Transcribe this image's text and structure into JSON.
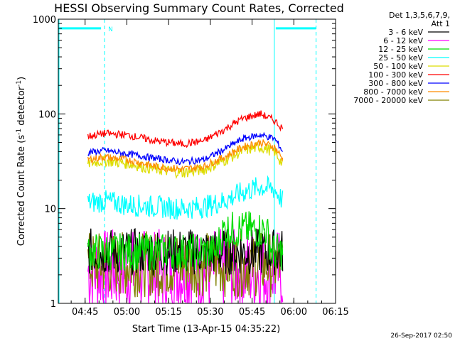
{
  "chart_data": {
    "type": "line",
    "title": "HESSI Observing Summary Count Rates, Corrected",
    "xlabel": "Start Time (13-Apr-15 04:35:22)",
    "ylabel_main": "Corrected Count Rate (s",
    "ylabel_sup1": "-1",
    "ylabel_mid": " detector",
    "ylabel_sup2": "-1",
    "ylabel_end": ")",
    "y_scale": "log",
    "ylim": [
      1,
      1000
    ],
    "xlim": [
      "04:35:22",
      "06:15:00"
    ],
    "x_ticks": [
      "04:45",
      "05:00",
      "05:15",
      "05:30",
      "05:45",
      "06:00",
      "06:15"
    ],
    "y_ticks": [
      "1",
      "10",
      "100",
      "1000"
    ],
    "legend_header": [
      "Det 1,3,5,6,7,9,",
      "Att 1"
    ],
    "legend_placement": "top-right, outside plot",
    "series": [
      {
        "name": "3 - 6 keV",
        "color": "#000000"
      },
      {
        "name": "6 - 12 keV",
        "color": "#ff00ff"
      },
      {
        "name": "12 - 25 keV",
        "color": "#00dd00"
      },
      {
        "name": "25 - 50 keV",
        "color": "#00ffff"
      },
      {
        "name": "50 - 100 keV",
        "color": "#dddd00"
      },
      {
        "name": "100 - 300 keV",
        "color": "#ff0000"
      },
      {
        "name": "300 - 800 keV",
        "color": "#0000ff"
      },
      {
        "name": "800 - 7000 keV",
        "color": "#ff8c00"
      },
      {
        "name": "7000 - 20000 keV",
        "color": "#808000"
      }
    ],
    "profiles": {
      "100 - 300 keV": {
        "x": [
          "04:46",
          "04:52",
          "05:00",
          "05:10",
          "05:20",
          "05:28",
          "05:35",
          "05:42",
          "05:48",
          "05:53",
          "05:56"
        ],
        "y": [
          58,
          62,
          60,
          52,
          48,
          52,
          68,
          90,
          100,
          85,
          70
        ]
      },
      "300 - 800 keV": {
        "x": [
          "04:46",
          "04:52",
          "05:00",
          "05:10",
          "05:20",
          "05:28",
          "05:35",
          "05:42",
          "05:48",
          "05:53",
          "05:56"
        ],
        "y": [
          39,
          41,
          38,
          34,
          31,
          33,
          42,
          55,
          60,
          55,
          40
        ]
      },
      "800 - 7000 keV": {
        "x": [
          "04:46",
          "04:52",
          "05:00",
          "05:10",
          "05:20",
          "05:28",
          "05:35",
          "05:42",
          "05:48",
          "05:53",
          "05:56"
        ],
        "y": [
          33,
          35,
          33,
          28,
          26,
          28,
          35,
          45,
          50,
          45,
          33
        ]
      },
      "50 - 100 keV": {
        "x": [
          "04:46",
          "04:52",
          "05:00",
          "05:10",
          "05:20",
          "05:28",
          "05:35",
          "05:42",
          "05:48",
          "05:53",
          "05:56"
        ],
        "y": [
          30,
          32,
          30,
          26,
          24,
          26,
          32,
          41,
          45,
          40,
          29
        ]
      },
      "25 - 50 keV": {
        "x": [
          "04:46",
          "04:52",
          "05:00",
          "05:10",
          "05:20",
          "05:28",
          "05:35",
          "05:42",
          "05:48",
          "05:53",
          "05:56"
        ],
        "y": [
          11.5,
          12,
          11,
          10.5,
          10,
          10.5,
          12,
          15,
          17,
          16,
          12
        ]
      },
      "12 - 25 keV": {
        "x": [
          "04:46",
          "05:32",
          "05:35",
          "05:50",
          "05:52",
          "05:56"
        ],
        "y": [
          3.5,
          3.5,
          6,
          6,
          3.5,
          3.5
        ]
      },
      "3 - 6 keV": {
        "x": [
          "04:46",
          "05:56"
        ],
        "y": [
          3.5,
          3.5
        ]
      },
      "7000 - 20000 keV": {
        "x": [
          "04:46",
          "05:56"
        ],
        "y": [
          2.6,
          2.6
        ]
      },
      "6 - 12 keV": {
        "x": [
          "04:46",
          "05:56"
        ],
        "y": [
          2.2,
          2.2
        ]
      }
    },
    "attenuator_band": {
      "label": "N",
      "color": "#00ffff",
      "level": 800
    }
  },
  "timestamp": "26-Sep-2017 02:50"
}
